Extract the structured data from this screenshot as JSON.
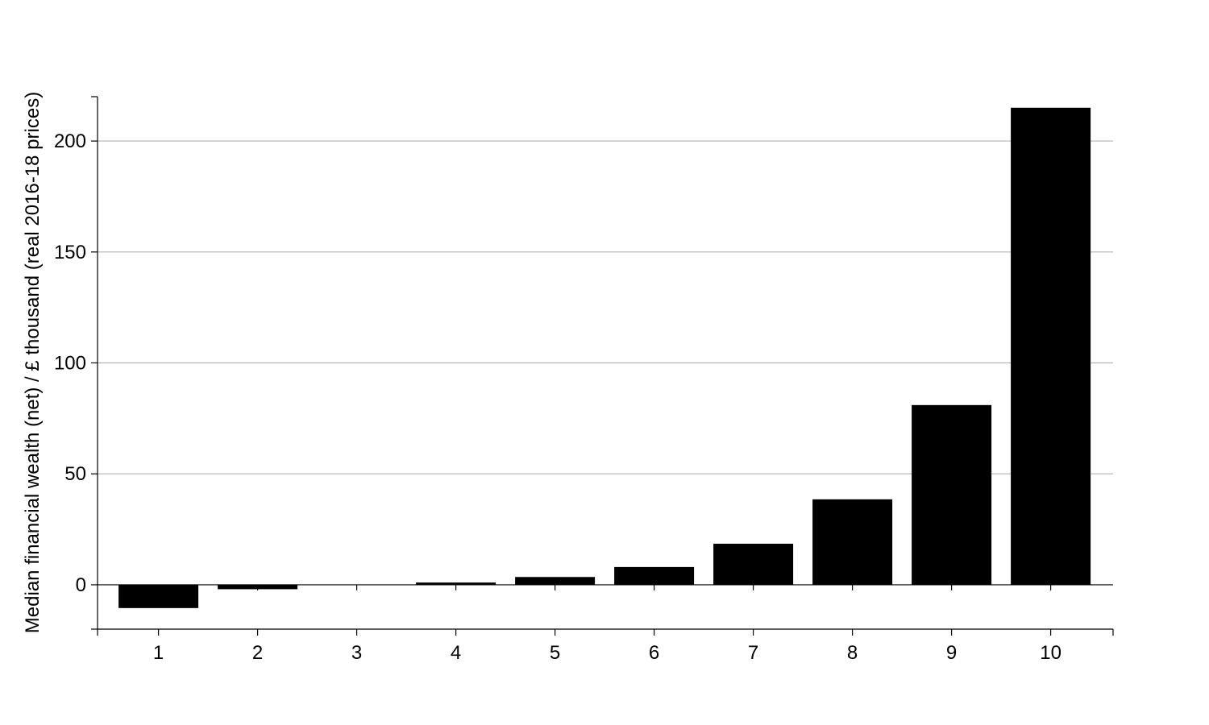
{
  "chart_data": {
    "type": "bar",
    "title": "",
    "xlabel": "",
    "ylabel": "Median financial wealth (net) / £ thousand (real 2016-18 prices)",
    "categories": [
      "1",
      "2",
      "3",
      "4",
      "5",
      "6",
      "7",
      "8",
      "9",
      "10"
    ],
    "values": [
      -10.5,
      -2,
      0,
      1,
      3.5,
      8,
      18.5,
      38.5,
      81,
      215
    ],
    "ylim": [
      -20,
      220
    ],
    "yticks": [
      0,
      50,
      100,
      150,
      200
    ],
    "grid": "horizontal",
    "legend": "none",
    "bar_color": "#000000",
    "grid_color": "#b3b3b3"
  }
}
